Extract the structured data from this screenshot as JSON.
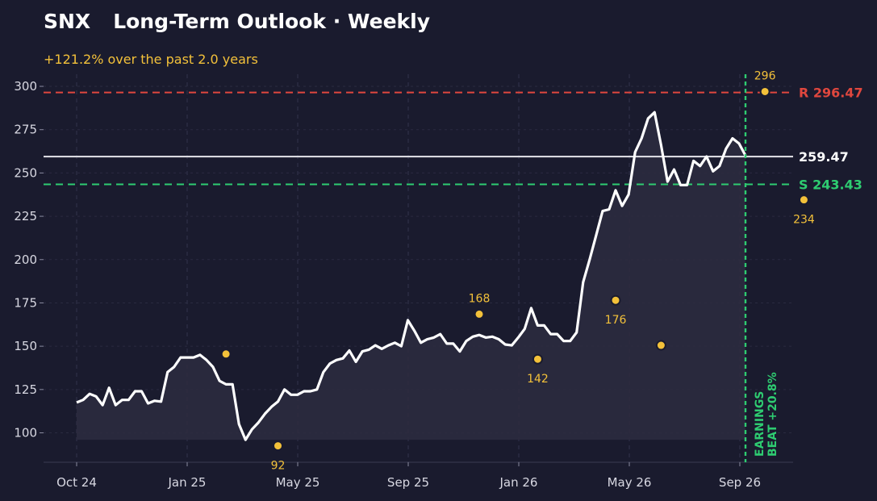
{
  "chart_data": {
    "type": "line",
    "ticker": "SNX",
    "title": "Long-Term Outlook · Weekly",
    "subtitle": "+121.2% over the past 2.0 years",
    "ylim": [
      83,
      307
    ],
    "y_ticks": [
      100,
      125,
      150,
      175,
      200,
      225,
      250,
      275,
      300
    ],
    "x_ticks": [
      "Oct 24",
      "Jan 25",
      "May 25",
      "Sep 25",
      "Jan 26",
      "May 26",
      "Sep 26"
    ],
    "grid": true,
    "series": [
      {
        "values": [
          117.5,
          119,
          122.5,
          121,
          116,
          126,
          116,
          119,
          119,
          124,
          124,
          117,
          118.5,
          118,
          135,
          138,
          143.5,
          143.5,
          143.5,
          145,
          142,
          138,
          130,
          128,
          128,
          105,
          96,
          102,
          106,
          111,
          115,
          118,
          125,
          122,
          122,
          124,
          124,
          125,
          135,
          140,
          142,
          143,
          147.5,
          141,
          147,
          148,
          150.5,
          148.5,
          150.5,
          152,
          150,
          165,
          159,
          152,
          154,
          155,
          157,
          151.5,
          151.5,
          147,
          153,
          155.5,
          156.5,
          155,
          155.5,
          154,
          151,
          150.5,
          155,
          160,
          172,
          162,
          162,
          157,
          157,
          153,
          153,
          158,
          187,
          200,
          214,
          228,
          229,
          240,
          231,
          237.5,
          262,
          270,
          281.5,
          285,
          266,
          245,
          252,
          243,
          243,
          257,
          254,
          259.5,
          251,
          254,
          264,
          270,
          267,
          260
        ],
        "color": "#ffffff"
      }
    ],
    "current_price": {
      "value": 259.47,
      "label": "259.47"
    },
    "resistance": {
      "value": 296.47,
      "label": "R 296.47",
      "color": "#e0473e"
    },
    "support": {
      "value": 243.43,
      "label": "S 243.43",
      "color": "#2ecc71"
    },
    "pivots": [
      {
        "index": 23,
        "value": 145.5,
        "label": ""
      },
      {
        "index": 31,
        "value": 92.5,
        "label": "92"
      },
      {
        "index": 62,
        "value": 168.5,
        "label": "168"
      },
      {
        "index": 71,
        "value": 142.5,
        "label": "142"
      },
      {
        "index": 83,
        "value": 176.5,
        "label": "176"
      },
      {
        "index": 90,
        "value": 150.5,
        "label": ""
      },
      {
        "index": 106,
        "value": 297,
        "label": "296"
      },
      {
        "index": 112,
        "value": 234.5,
        "label": "234"
      }
    ],
    "event": {
      "label_line1": "EARNINGS",
      "label_line2": "BEAT +20.8%",
      "color": "#2ecc71"
    },
    "colors": {
      "background": "#1a1b2e",
      "pivot": "#f3c13a",
      "fill": "#2d2c40",
      "current": "#d9d9e0"
    }
  }
}
